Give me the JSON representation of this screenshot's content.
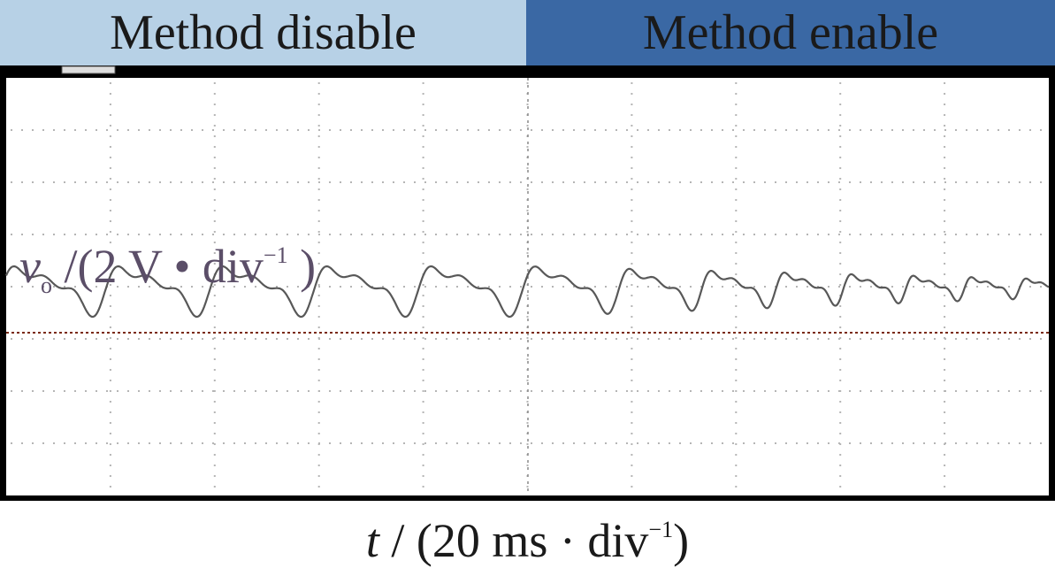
{
  "chart_data": {
    "type": "line",
    "title": "",
    "annotations": [
      {
        "text": "Method disable"
      },
      {
        "text": "Method enable"
      }
    ],
    "ylabel_symbol": "v",
    "ylabel_subscript": "o",
    "ylabel_unit": "/(2 V • div",
    "ylabel_exponent": "−1",
    "ylabel_close": ")",
    "xlabel_symbol": "t",
    "xlabel_unit": "/ (20 ms · div",
    "xlabel_exponent": "−1",
    "xlabel_close": ")",
    "xlim": [
      0,
      10
    ],
    "ylim": [
      -4,
      4
    ],
    "grid": true,
    "series": [
      {
        "x": [
          0,
          5,
          10
        ],
        "values": [
          0,
          0,
          0
        ],
        "ripple_peak_to_peak_div": [
          1.2,
          1.2,
          0.45
        ],
        "ripple_cycles_per_div": [
          1.0,
          1.0,
          2.0
        ]
      }
    ]
  }
}
